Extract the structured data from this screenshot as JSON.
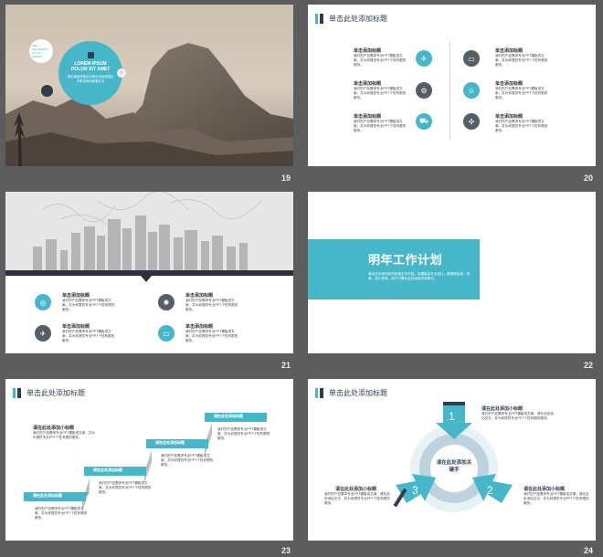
{
  "slides": [
    {
      "num": "19",
      "bubble": {
        "title": "LOREM IPSUM DOLOR SIT AMET",
        "body": "单击添加段落文字单击添加段落文字单击添加段落文字",
        "small": "ADD KEYWORDS STYLE INSERT"
      }
    },
    {
      "num": "20",
      "title": "单击此处添加标题",
      "items": [
        {
          "title": "单击添加标题",
          "body": "我们的产品需求专业PPT模板或文案，并为你提供专业PPT个性有限的服务。",
          "icon": "airplane-icon"
        },
        {
          "title": "单击添加标题",
          "body": "我们的产品需求专业PPT模板或文案，并为你提供专业PPT个性有限的服务。",
          "icon": "settings-icon"
        },
        {
          "title": "单击添加标题",
          "body": "我们的产品需求专业PPT模板或文案，并为你提供专业PPT个性有限的服务。",
          "icon": "truck-icon"
        },
        {
          "title": "单击添加标题",
          "body": "我们的产品需求专业PPT模板或文案，并为你提供专业PPT个性有限的服务。",
          "icon": "money-icon"
        },
        {
          "title": "单击添加标题",
          "body": "我们的产品需求专业PPT模板或文案，并为你提供专业PPT个性有限的服务。",
          "icon": "team-icon"
        },
        {
          "title": "单击添加标题",
          "body": "我们的产品需求专业PPT模板或文案，并为你提供专业PPT个性有限的服务。",
          "icon": "compass-icon"
        }
      ]
    },
    {
      "num": "21",
      "items": [
        {
          "title": "单击添加标题",
          "body": "我们的产品需求专业PPT模板或文案，并为你提供专业PPT个性有限的服务。",
          "icon": "target-icon"
        },
        {
          "title": "单击添加标题",
          "body": "我们的产品需求专业PPT模板或文案，并为你提供专业PPT个性有限的服务。",
          "icon": "airplane-icon"
        },
        {
          "title": "单击添加标题",
          "body": "我们的产品需求专业PPT模板或文案，并为你提供专业PPT个性有限的服务。",
          "icon": "sun-icon"
        },
        {
          "title": "单击添加标题",
          "body": "我们的产品需求专业PPT模板或文案，并为你提供专业PPT个性有限的服务。",
          "icon": "money-icon"
        }
      ]
    },
    {
      "num": "22",
      "banner": {
        "title": "明年工作计划",
        "body": "单击此处添加你的段落文字内容。本模板由专业设计，精美而实用，简单，易于修改，用户只需在此处添加内容即可。"
      }
    },
    {
      "num": "23",
      "title": "单击此处添加标题",
      "lead": {
        "title": "请在此处添加小标题",
        "body": "我们的产品需求专业PPT模板或文案，并为你提供专业PPT个性有限的服务。"
      },
      "steps": [
        {
          "label": "请在此处添加标题",
          "body": "我们的产品需求专业PPT模板或文案，并为你提供专业PPT个性有限的服务。"
        },
        {
          "label": "请在此处添加标题",
          "body": "我们的产品需求专业PPT模板或文案，并为你提供专业PPT个性有限的服务。"
        },
        {
          "label": "请在此处添加标题",
          "body": "我们的产品需求专业PPT模板或文案，并为你提供专业PPT个性有限的服务。"
        },
        {
          "label": "请在此处添加标题",
          "body": "我们的产品需求专业PPT模板或文案，并为你提供专业PPT个性有限的服务。"
        }
      ]
    },
    {
      "num": "24",
      "title": "单击此处添加标题",
      "center": "请在此处添加关键字",
      "arrows": [
        "1",
        "2",
        "3"
      ],
      "notes": [
        {
          "title": "请在此处添加小标题",
          "body": "我们的产品需求专业PPT模板或文案，请在此处添加文字，并为你提供专业PPT个性有限的服务。"
        },
        {
          "title": "请在此处添加小标题",
          "body": "我们的产品需求专业PPT模板或文案，请在此处添加文字，并为你提供专业PPT个性有限的服务。"
        },
        {
          "title": "请在此处添加小标题",
          "body": "我们的产品需求专业PPT模板或文案，请在此处添加文字，并为你提供专业PPT个性有限的服务。"
        }
      ]
    }
  ],
  "colors": {
    "accent": "#46b7c9",
    "dark": "#2e3e4e",
    "bg": "#5d5d5d"
  }
}
